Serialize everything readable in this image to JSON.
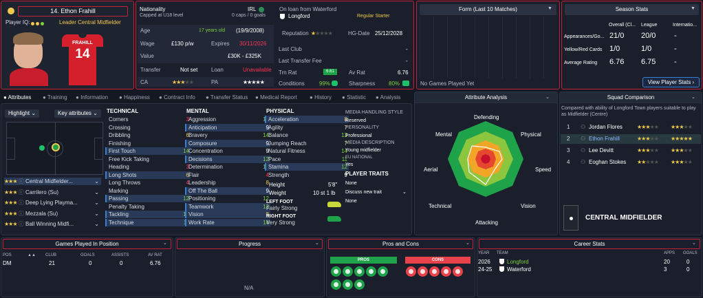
{
  "player": {
    "name": "14. Ethon Frahill",
    "iq_label": "Player IQ:",
    "role": "Leader Central Midfielder",
    "shirt_name": "FRAHILL",
    "shirt_number": "14"
  },
  "bio": {
    "nationality_label": "Nationality",
    "nationality": "IRL",
    "caps_label": "Capped at U18 level",
    "caps": "0 caps / 0 goals",
    "loan_label": "On loan from Waterford",
    "club": "Longford",
    "status": "Regular Starter",
    "age_label": "Age",
    "age_years": "17 years old",
    "dob": "(19/9/2008)",
    "wage_label": "Wage",
    "wage": "£130 p/w",
    "expires_label": "Expires",
    "expires": "30/11/2026",
    "value_label": "Value",
    "value": "£30K - £325K",
    "transfer_label": "Transfer",
    "transfer": "Not set",
    "loan2_label": "Loan",
    "loan2": "Unavailable",
    "ca_label": "CA",
    "pa_label": "PA",
    "rep_label": "Reputation",
    "hg_label": "HG-Date",
    "hg": "25/12/2028",
    "lastclub_label": "Last Club",
    "lastclub": "-",
    "lastfee_label": "Last Transfer Fee",
    "lastfee": "-",
    "trn_label": "Trn Rat",
    "trn": "6.61",
    "av_label": "Av Rat",
    "av": "6.76",
    "cond_label": "Conditions",
    "cond": "99%",
    "sharp_label": "Sharpness",
    "sharp": "80%"
  },
  "form": {
    "title": "Form (Last 10 Matches)",
    "empty": "No Games Played Yet"
  },
  "season": {
    "title": "Season Stats",
    "cols": [
      "Overall (Cl...",
      "League",
      "Internatio..."
    ],
    "rows": [
      {
        "label": "Appearances/Go...",
        "v": [
          "21/0",
          "20/0",
          "-"
        ]
      },
      {
        "label": "Yellow/Red Cards",
        "v": [
          "1/0",
          "1/0",
          "-"
        ]
      },
      {
        "label": "Average Rating",
        "v": [
          "6.76",
          "6.75",
          "-"
        ]
      }
    ],
    "button": "View Player Stats"
  },
  "tabs": [
    "Attributes",
    "Training",
    "Information",
    "Happiness",
    "Contract Info",
    "Transfer Status",
    "Medical Report",
    "History",
    "Statistic",
    "Analysis"
  ],
  "left": {
    "highlight": "Highlight",
    "keyattr": "Key attributes",
    "roles": [
      {
        "name": "Central Midfielder..."
      },
      {
        "name": "Carrilero (Su)"
      },
      {
        "name": "Deep Lying Playma..."
      },
      {
        "name": "Mezzala (Su)"
      },
      {
        "name": "Ball Winning Midfi..."
      }
    ]
  },
  "technical": {
    "title": "TECHNICAL",
    "items": [
      [
        "Corners",
        "3"
      ],
      [
        "Crossing",
        "5"
      ],
      [
        "Dribbling",
        "6"
      ],
      [
        "Finishing",
        "2"
      ],
      [
        "First Touch",
        "14"
      ],
      [
        "Free Kick Taking",
        "6"
      ],
      [
        "Heading",
        "3"
      ],
      [
        "Long Shots",
        "6"
      ],
      [
        "Long Throws",
        "4"
      ],
      [
        "Marking",
        "8"
      ],
      [
        "Passing",
        "12"
      ],
      [
        "Penalty Taking",
        "5"
      ],
      [
        "Tackling",
        "12"
      ],
      [
        "Technique",
        "11"
      ]
    ]
  },
  "mental": {
    "title": "MENTAL",
    "items": [
      [
        "Aggression",
        "12"
      ],
      [
        "Anticipation",
        "9"
      ],
      [
        "Bravery",
        "14"
      ],
      [
        "Composure",
        "9"
      ],
      [
        "Concentration",
        "9"
      ],
      [
        "Decisions",
        "12"
      ],
      [
        "Determination",
        "12"
      ],
      [
        "Flair",
        "4"
      ],
      [
        "Leadership",
        "8"
      ],
      [
        "Off The Ball",
        "9"
      ],
      [
        "Positioning",
        "12"
      ],
      [
        "Teamwork",
        "13"
      ],
      [
        "Vision",
        "8"
      ],
      [
        "Work Rate",
        "14"
      ]
    ]
  },
  "physical": {
    "title": "PHYSICAL",
    "items": [
      [
        "Acceleration",
        "8"
      ],
      [
        "Agility",
        "7"
      ],
      [
        "Balance",
        "13"
      ],
      [
        "Jumping Reach",
        "7"
      ],
      [
        "Natural Fitness",
        "14"
      ],
      [
        "Pace",
        "11"
      ],
      [
        "Stamina",
        "12"
      ],
      [
        "Strength",
        "9"
      ]
    ],
    "height_label": "Height",
    "height": "5'8\"",
    "weight_label": "Weight",
    "weight": "10 st 1 lb",
    "lf_label": "LEFT FOOT",
    "lf": "Fairly Strong",
    "rf_label": "RIGHT FOOT",
    "rf": "Very Strong"
  },
  "media": {
    "title": "MEDIA HANDLING STYLE",
    "style": "Reserved",
    "pers_label": "PERSONALITY",
    "pers": "Professional",
    "desc_label": "MEDIA DESCRIPTION",
    "desc": "Young midfielder",
    "eu_label": "EU NATIONAL",
    "eu": "Yes",
    "traits_label": "PLAYER TRAITS",
    "traits": "None",
    "discuss": "Discuss new trait",
    "traits2": "None"
  },
  "analysis": {
    "title": "Attribute Analysis",
    "axes": [
      "Defending",
      "Physical",
      "Speed",
      "Vision",
      "Attacking",
      "Technical",
      "Aerial",
      "Mental"
    ]
  },
  "squad": {
    "title": "Squad Comparison",
    "desc": "Compared with ability of Longford Town players suitable to play as Midfielder (Centre)",
    "rows": [
      {
        "n": "1",
        "name": "Jordan Flores"
      },
      {
        "n": "2",
        "name": "Ethon Frahill"
      },
      {
        "n": "3",
        "name": "Lee Devitt"
      },
      {
        "n": "4",
        "name": "Eoghan Stokes"
      }
    ],
    "position": "CENTRAL MIDFIELDER"
  },
  "games": {
    "title": "Games Played In Position",
    "cols": [
      "POS",
      "CLUB",
      "GOALS",
      "ASSISTS",
      "AV RAT"
    ],
    "row": [
      "DM",
      "21",
      "0",
      "0",
      "6.76"
    ]
  },
  "progress": {
    "title": "Progress",
    "empty": "N/A"
  },
  "proscons": {
    "title": "Pros and Cons",
    "pros": "PROS",
    "cons": "CONS"
  },
  "career": {
    "title": "Career Stats",
    "cols": [
      "YEAR",
      "TEAM",
      "APPS",
      "GOALS"
    ],
    "rows": [
      [
        "2026",
        "Longford",
        "20",
        "0"
      ],
      [
        "24-25",
        "Waterford",
        "3",
        "0"
      ]
    ]
  },
  "colors": {
    "accent": "#c3223a",
    "good": "#7fd13b",
    "bad": "#ff3355"
  }
}
